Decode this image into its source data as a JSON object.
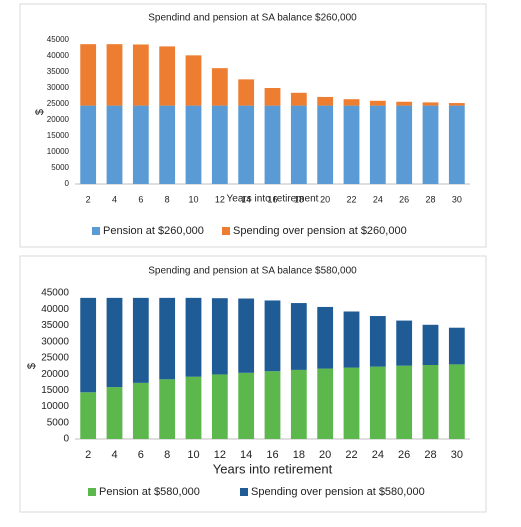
{
  "chart_data": [
    {
      "type": "bar",
      "stacked": true,
      "title": "Spendind and pension at SA balance $260,000",
      "x_label": "Years into retirement",
      "y_label": "$",
      "categories": [
        "2",
        "4",
        "6",
        "8",
        "10",
        "12",
        "14",
        "16",
        "18",
        "20",
        "22",
        "24",
        "26",
        "28",
        "30"
      ],
      "series": [
        {
          "name": "Pension at $260,000",
          "color": "#5b9bd5",
          "values": [
            24500,
            24500,
            24500,
            24500,
            24500,
            24500,
            24500,
            24500,
            24500,
            24500,
            24500,
            24500,
            24500,
            24500,
            24500
          ]
        },
        {
          "name": "Spending over pension at $260,000",
          "color": "#ed7d31",
          "values": [
            19200,
            19200,
            19100,
            18500,
            15700,
            11700,
            8200,
            5500,
            4000,
            2700,
            2000,
            1500,
            1200,
            1000,
            800
          ]
        }
      ],
      "ylim": [
        0,
        45000
      ],
      "yticks": [
        0,
        5000,
        10000,
        15000,
        20000,
        25000,
        30000,
        35000,
        40000,
        45000
      ],
      "legend": "bottom"
    },
    {
      "type": "bar",
      "stacked": true,
      "title": "Spending and pension at SA balance $580,000",
      "x_label": "Years into retirement",
      "y_label": "$",
      "categories": [
        "2",
        "4",
        "6",
        "8",
        "10",
        "12",
        "14",
        "16",
        "18",
        "20",
        "22",
        "24",
        "26",
        "28",
        "30"
      ],
      "series": [
        {
          "name": "Pension at $580,000",
          "color": "#5cb84c",
          "values": [
            14400,
            16000,
            17300,
            18400,
            19200,
            19900,
            20400,
            20900,
            21300,
            21700,
            22000,
            22300,
            22600,
            22800,
            23000
          ]
        },
        {
          "name": "Spending over pension at $580,000",
          "color": "#1f5b94",
          "values": [
            29100,
            27500,
            26200,
            25100,
            24300,
            23500,
            22900,
            21800,
            20600,
            19000,
            17300,
            15600,
            13900,
            12400,
            11300
          ]
        }
      ],
      "ylim": [
        0,
        45000
      ],
      "yticks": [
        0,
        5000,
        10000,
        15000,
        20000,
        25000,
        30000,
        35000,
        40000,
        45000
      ],
      "legend": "bottom"
    }
  ]
}
